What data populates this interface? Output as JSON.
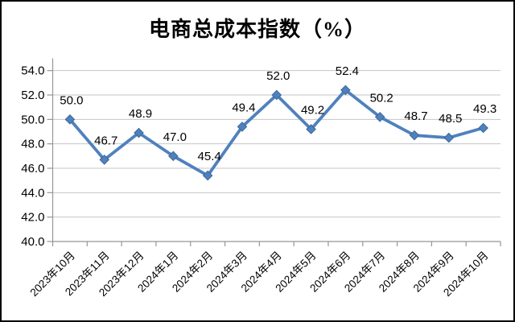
{
  "window": {
    "background_color": "#ffffff",
    "border_color": "#000000"
  },
  "chart_data": {
    "type": "line",
    "title": "电商总成本指数（%）",
    "categories": [
      "2023年10月",
      "2023年11月",
      "2023年12月",
      "2024年1月",
      "2024年2月",
      "2024年3月",
      "2024年4月",
      "2024年5月",
      "2024年6月",
      "2024年7月",
      "2024年8月",
      "2024年9月",
      "2024年10月"
    ],
    "values": [
      50.0,
      46.7,
      48.9,
      47.0,
      45.4,
      49.4,
      52.0,
      49.2,
      52.4,
      50.2,
      48.7,
      48.5,
      49.3
    ],
    "data_labels": [
      "50.0",
      "46.7",
      "48.9",
      "47.0",
      "45.4",
      "49.4",
      "52.0",
      "49.2",
      "52.4",
      "50.2",
      "48.7",
      "48.5",
      "49.3"
    ],
    "xlabel": "",
    "ylabel": "",
    "ylim": [
      40,
      55
    ],
    "y_major_unit": 2,
    "y_tick_labels": [
      "40.0",
      "42.0",
      "44.0",
      "46.0",
      "48.0",
      "50.0",
      "52.0",
      "54.0"
    ],
    "y_tick_values": [
      40,
      42,
      44,
      46,
      48,
      50,
      52,
      54
    ],
    "grid": true,
    "legend_position": "none",
    "marker": "diamond",
    "colors": {
      "line": "#4F81BD",
      "marker_fill": "#4F81BD",
      "marker_stroke": "#3C6898",
      "gridline": "#C6C6C6",
      "axis": "#969696",
      "text": "#000000"
    }
  }
}
